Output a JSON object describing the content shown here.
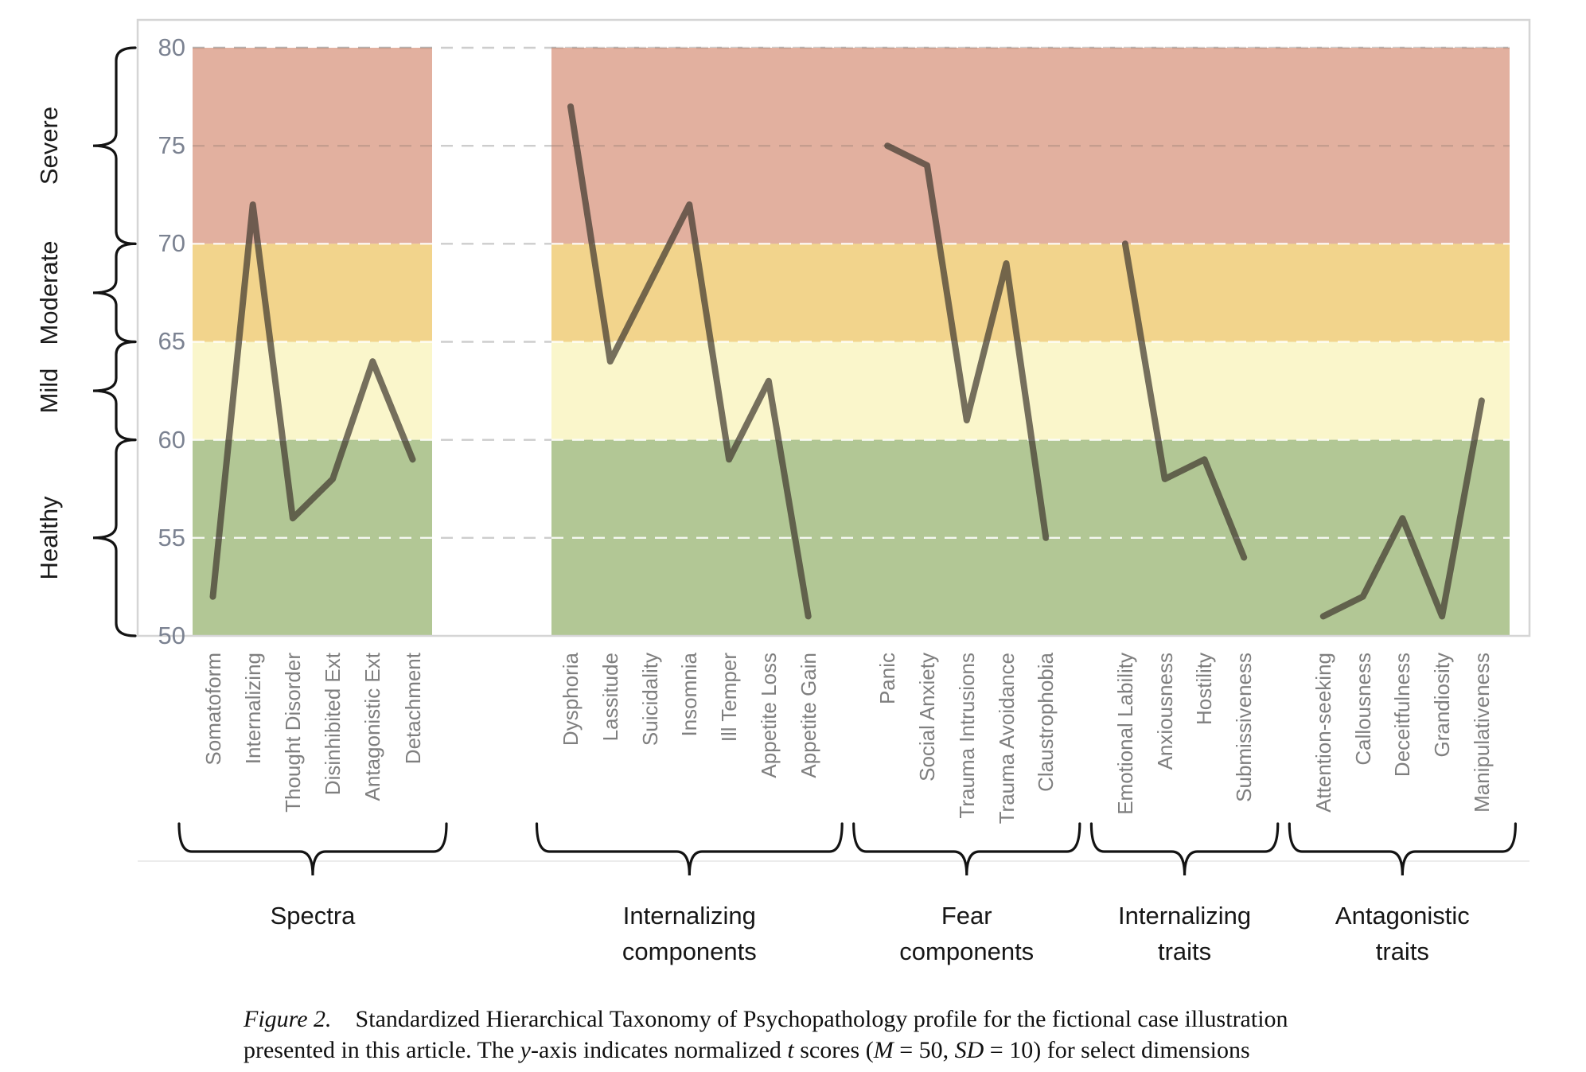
{
  "figure_caption": {
    "line1_segments": [
      {
        "text": "Figure 2.",
        "italic": true
      },
      {
        "text": " Standardized Hierarchical Taxonomy of Psychopathology profile for the fictional case illustration",
        "italic": false
      }
    ],
    "line2_segments": [
      {
        "text": "presented in this article. The ",
        "italic": false
      },
      {
        "text": "y",
        "italic": true
      },
      {
        "text": "-axis indicates normalized ",
        "italic": false
      },
      {
        "text": "t",
        "italic": true
      },
      {
        "text": " scores (",
        "italic": false
      },
      {
        "text": "M",
        "italic": true
      },
      {
        "text": " = 50, ",
        "italic": false
      },
      {
        "text": "SD",
        "italic": true
      },
      {
        "text": " = 10) for select dimensions",
        "italic": false
      }
    ]
  },
  "y_axis": {
    "ticks": [
      80,
      75,
      70,
      65,
      60,
      55,
      50
    ],
    "tick_color": "#7b8291"
  },
  "severity_scale": {
    "labels": [
      {
        "label": "Severe",
        "range": [
          70,
          80
        ]
      },
      {
        "label": "Moderate",
        "range": [
          65,
          70
        ]
      },
      {
        "label": "Mild",
        "range": [
          60,
          65
        ]
      },
      {
        "label": "Healthy",
        "range": [
          50,
          60
        ]
      }
    ]
  },
  "chart_data": {
    "type": "line",
    "title": "",
    "xlabel": "",
    "ylabel": "",
    "ylim": [
      50,
      80
    ],
    "y_ticks": [
      80,
      75,
      70,
      65,
      60,
      55,
      50
    ],
    "grid": "dashed horizontal gridlines every 5 t-score units",
    "legend": "none",
    "trace_color": "#413a30",
    "bands": [
      {
        "name": "Severe",
        "range": [
          70,
          80
        ],
        "color": "#e2b09f"
      },
      {
        "name": "Moderate",
        "range": [
          65,
          70
        ],
        "color": "#f2d48c"
      },
      {
        "name": "Mild",
        "range": [
          60,
          65
        ],
        "color": "#faf6cb"
      },
      {
        "name": "Healthy",
        "range": [
          50,
          60
        ],
        "color": "#b2c795"
      }
    ],
    "groups": [
      {
        "name": "Spectra",
        "categories": [
          "Somatoform",
          "Internalizing",
          "Thought Disorder",
          "Disinhibited Ext",
          "Antagonistic Ext",
          "Detachment"
        ],
        "values": [
          52,
          72,
          56,
          58,
          64,
          59
        ]
      },
      {
        "name": "Internalizing components",
        "categories": [
          "Dysphoria",
          "Lassitude",
          "Suicidality",
          "Insomnia",
          "Ill Temper",
          "Appetite Loss",
          "Appetite Gain"
        ],
        "values": [
          77,
          64,
          68,
          72,
          59,
          63,
          51
        ]
      },
      {
        "name": "Fear components",
        "categories": [
          "Panic",
          "Social Anxiety",
          "Trauma Intrusions",
          "Trauma Avoidance",
          "Claustrophobia"
        ],
        "values": [
          75,
          74,
          61,
          69,
          55
        ]
      },
      {
        "name": "Internalizing traits",
        "categories": [
          "Emotional Lability",
          "Anxiousness",
          "Hostility",
          "Submissiveness"
        ],
        "values": [
          70,
          58,
          59,
          54
        ]
      },
      {
        "name": "Antagonistic traits",
        "categories": [
          "Attention-seeking",
          "Callousness",
          "Deceitfulness",
          "Grandiosity",
          "Manipulativeness"
        ],
        "values": [
          51,
          52,
          56,
          51,
          62
        ]
      }
    ],
    "group_titles": [
      "Spectra",
      "Internalizing\ncomponents",
      "Fear\ncomponents",
      "Internalizing\ntraits",
      "Antagonistic\ntraits"
    ]
  }
}
